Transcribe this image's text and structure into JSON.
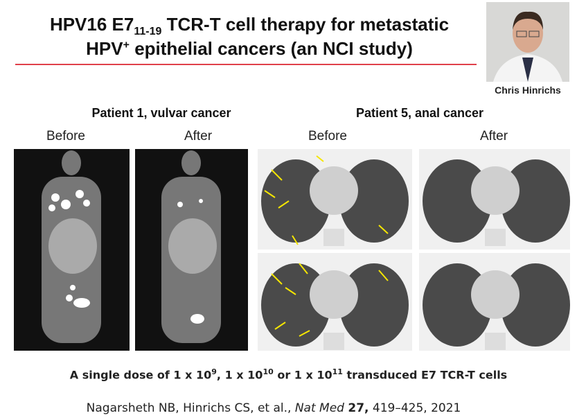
{
  "slide": {
    "title": {
      "line1": {
        "text": "HPV16 E7",
        "subscript": "11-19",
        "rest": "TCR-T cell therapy for metastatic"
      },
      "line2": {
        "text": "HPV",
        "superscript": "+",
        "rest": "epithelial cancers (an NCI study)"
      }
    },
    "photo_caption": "Chris Hinrichs",
    "panels": [
      {
        "heading": "Patient 1, vulvar cancer",
        "before": "Before",
        "after": "After"
      },
      {
        "heading": "Patient 5, anal cancer",
        "before": "Before",
        "after": "After"
      }
    ],
    "dose": {
      "lead": "A single dose of 1 x 10",
      "exp1": "9",
      "mid1": ", 1 x 10",
      "exp2": "10",
      "mid2": "or 1 x 10",
      "exp3": "11",
      "tail": "transduced E7 TCR-T cells"
    },
    "citation": {
      "authors": "Nagarsheth NB, Hinrichs CS, et al.,",
      "journal": "Nat Med",
      "volume": "27,",
      "pages": "419–425, 2021"
    }
  }
}
